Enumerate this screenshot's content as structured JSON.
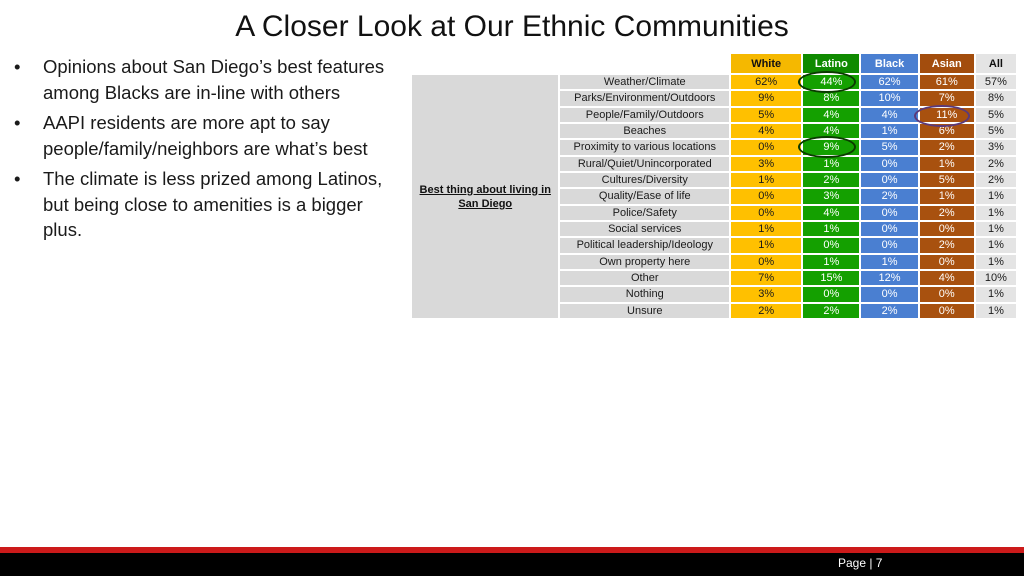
{
  "title": "A Closer Look at Our Ethnic Communities",
  "bullets": [
    "Opinions about San Diego’s best features among Blacks are in-line with others",
    "AAPI residents are more apt to say people/family/neighbors are what’s best",
    "The climate is less prized among Latinos, but being close to amenities is a bigger plus."
  ],
  "table": {
    "group_label": "Best thing about living in San Diego",
    "columns": [
      "White",
      "Latino",
      "Black",
      "Asian",
      "All"
    ],
    "rows": [
      {
        "label": "Weather/Climate",
        "values": [
          "62%",
          "44%",
          "62%",
          "61%",
          "57%"
        ]
      },
      {
        "label": "Parks/Environment/Outdoors",
        "values": [
          "9%",
          "8%",
          "10%",
          "7%",
          "8%"
        ]
      },
      {
        "label": "People/Family/Outdoors",
        "values": [
          "5%",
          "4%",
          "4%",
          "11%",
          "5%"
        ]
      },
      {
        "label": "Beaches",
        "values": [
          "4%",
          "4%",
          "1%",
          "6%",
          "5%"
        ]
      },
      {
        "label": "Proximity to various locations",
        "values": [
          "0%",
          "9%",
          "5%",
          "2%",
          "3%"
        ]
      },
      {
        "label": "Rural/Quiet/Unincorporated",
        "values": [
          "3%",
          "1%",
          "0%",
          "1%",
          "2%"
        ]
      },
      {
        "label": "Cultures/Diversity",
        "values": [
          "1%",
          "2%",
          "0%",
          "5%",
          "2%"
        ]
      },
      {
        "label": "Quality/Ease of life",
        "values": [
          "0%",
          "3%",
          "2%",
          "1%",
          "1%"
        ]
      },
      {
        "label": "Police/Safety",
        "values": [
          "0%",
          "4%",
          "0%",
          "2%",
          "1%"
        ]
      },
      {
        "label": "Social services",
        "values": [
          "1%",
          "1%",
          "0%",
          "0%",
          "1%"
        ]
      },
      {
        "label": "Political leadership/Ideology",
        "values": [
          "1%",
          "0%",
          "0%",
          "2%",
          "1%"
        ]
      },
      {
        "label": "Own property here",
        "values": [
          "0%",
          "1%",
          "1%",
          "0%",
          "1%"
        ]
      },
      {
        "label": "Other",
        "values": [
          "7%",
          "15%",
          "12%",
          "4%",
          "10%"
        ]
      },
      {
        "label": "Nothing",
        "values": [
          "3%",
          "0%",
          "0%",
          "0%",
          "1%"
        ]
      },
      {
        "label": "Unsure",
        "values": [
          "2%",
          "2%",
          "2%",
          "0%",
          "1%"
        ]
      }
    ]
  },
  "footer": {
    "page_label": "Page | 7"
  },
  "colors": {
    "white_col": "#ffc000",
    "latino_col": "#14a000",
    "black_col": "#4a7fd1",
    "asian_col": "#a8510f",
    "all_col": "#e4e4e4",
    "footer_red": "#cc1a1a"
  }
}
